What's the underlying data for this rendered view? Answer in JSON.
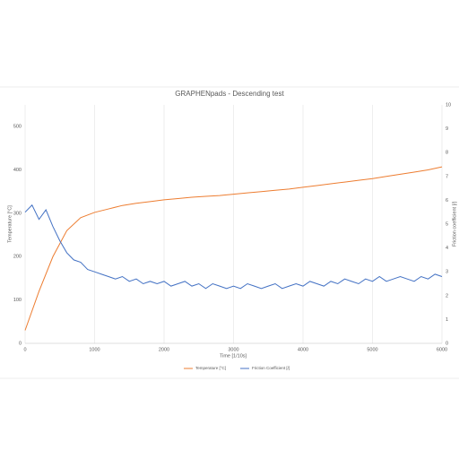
{
  "chart_data": {
    "type": "line",
    "title": "GRAPHENpads - Descending test",
    "x_label": "Time [1/10s]",
    "y_label": "Temperature [°C]",
    "y2_label": "Friction coefficient [/]",
    "xlim": [
      0,
      6000
    ],
    "xticks": [
      0,
      1000,
      2000,
      3000,
      4000,
      5000,
      6000
    ],
    "ylim": [
      0,
      550
    ],
    "yticks": [
      0,
      100,
      200,
      300,
      400,
      500
    ],
    "y2lim": [
      0,
      10
    ],
    "y2ticks": [
      0,
      1,
      2,
      3,
      4,
      5,
      6,
      7,
      8,
      9,
      10
    ],
    "grid": true,
    "legend": "bottom",
    "series": [
      {
        "name": "Temperature [°C]",
        "color": "#ed7d31",
        "x": [
          0,
          200,
          400,
          600,
          800,
          1000,
          1200,
          1400,
          1600,
          1800,
          2000,
          2200,
          2400,
          2600,
          2800,
          3000,
          3200,
          3400,
          3600,
          3800,
          4000,
          4200,
          4400,
          4600,
          4800,
          5000,
          5200,
          5400,
          5600,
          5800,
          6000
        ],
        "values": [
          30,
          120,
          200,
          260,
          290,
          302,
          310,
          318,
          323,
          327,
          331,
          334,
          337,
          339,
          341,
          344,
          347,
          350,
          353,
          356,
          360,
          364,
          368,
          372,
          376,
          380,
          385,
          390,
          395,
          400,
          407
        ]
      },
      {
        "name": "Friction Coefficient [/]",
        "color": "#4472c4",
        "axis": "y2",
        "x": [
          0,
          100,
          200,
          300,
          400,
          500,
          600,
          700,
          800,
          900,
          1000,
          1100,
          1200,
          1300,
          1400,
          1500,
          1600,
          1700,
          1800,
          1900,
          2000,
          2100,
          2200,
          2300,
          2400,
          2500,
          2600,
          2700,
          2800,
          2900,
          3000,
          3100,
          3200,
          3300,
          3400,
          3500,
          3600,
          3700,
          3800,
          3900,
          4000,
          4100,
          4200,
          4300,
          4400,
          4500,
          4600,
          4700,
          4800,
          4900,
          5000,
          5100,
          5200,
          5300,
          5400,
          5500,
          5600,
          5700,
          5800,
          5900,
          6000
        ],
        "values": [
          5.5,
          5.8,
          5.2,
          5.6,
          4.9,
          4.3,
          3.8,
          3.5,
          3.4,
          3.1,
          3.0,
          2.9,
          2.8,
          2.7,
          2.8,
          2.6,
          2.7,
          2.5,
          2.6,
          2.5,
          2.6,
          2.4,
          2.5,
          2.6,
          2.4,
          2.5,
          2.3,
          2.5,
          2.4,
          2.3,
          2.4,
          2.3,
          2.5,
          2.4,
          2.3,
          2.4,
          2.5,
          2.3,
          2.4,
          2.5,
          2.4,
          2.6,
          2.5,
          2.4,
          2.6,
          2.5,
          2.7,
          2.6,
          2.5,
          2.7,
          2.6,
          2.8,
          2.6,
          2.7,
          2.8,
          2.7,
          2.6,
          2.8,
          2.7,
          2.9,
          2.8
        ]
      }
    ]
  }
}
